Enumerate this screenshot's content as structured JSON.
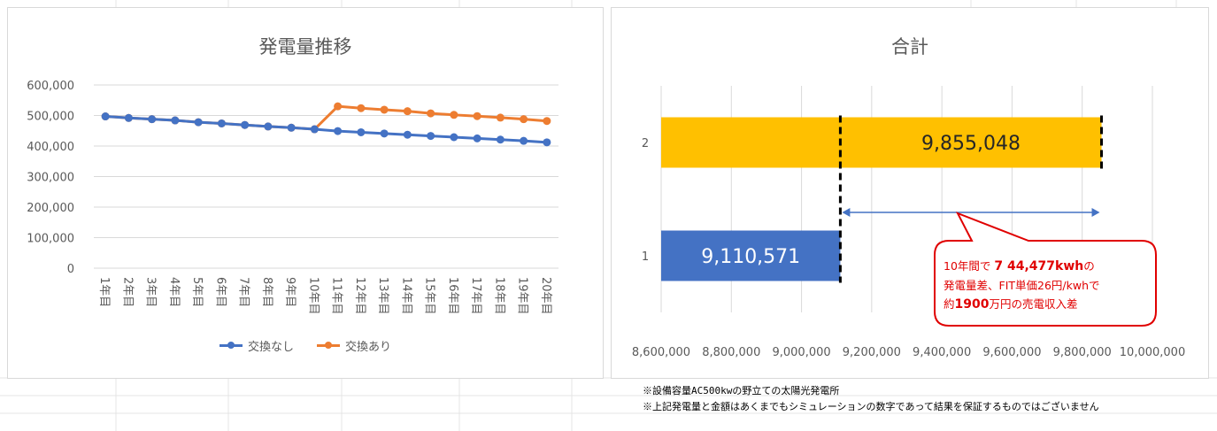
{
  "left_chart": {
    "title": "発電量推移",
    "legend": [
      {
        "label": "交換なし",
        "color": "#4472c4"
      },
      {
        "label": "交換あり",
        "color": "#ed7d31"
      }
    ]
  },
  "right_chart": {
    "title": "合計",
    "bar_labels": [
      "9,110,571",
      "9,855,048"
    ]
  },
  "callout": {
    "line1_prefix": "10年間で ",
    "line1_value": "7 44,477kwh",
    "line1_suffix": "の",
    "line2": "発電量差、FIT単価26円/kwhで",
    "line3_prefix": "約",
    "line3_value": "1900",
    "line3_suffix": "万円の売電収入差",
    "color": "#e00000"
  },
  "footnotes": [
    "※設備容量AC500kwの野立ての太陽光発電所",
    "※上記発電量と金額はあくまでもシミュレーションの数字であって結果を保証するものではございません"
  ],
  "chart_data": [
    {
      "type": "line",
      "title": "発電量推移",
      "categories": [
        "1年目",
        "2年目",
        "3年目",
        "4年目",
        "5年目",
        "6年目",
        "7年目",
        "8年目",
        "9年目",
        "10年目",
        "11年目",
        "12年目",
        "13年目",
        "14年目",
        "15年目",
        "16年目",
        "17年目",
        "18年目",
        "19年目",
        "20年目"
      ],
      "ylim": [
        0,
        600000
      ],
      "yticks": [
        0,
        100000,
        200000,
        300000,
        400000,
        500000,
        600000
      ],
      "ytick_labels": [
        "0",
        "100,000",
        "200,000",
        "300,000",
        "400,000",
        "500,000",
        "600,000"
      ],
      "grid": true,
      "legend_position": "bottom",
      "series": [
        {
          "name": "交換なし",
          "color": "#4472c4",
          "values": [
            497000,
            492000,
            488000,
            484000,
            478000,
            474000,
            469000,
            464000,
            460000,
            455000,
            449000,
            445000,
            441000,
            437000,
            433000,
            429000,
            425000,
            421000,
            417000,
            412000
          ]
        },
        {
          "name": "交換あり",
          "color": "#ed7d31",
          "values": [
            497000,
            492000,
            488000,
            484000,
            478000,
            474000,
            469000,
            464000,
            460000,
            455000,
            530000,
            524000,
            519000,
            514000,
            507000,
            502000,
            498000,
            493000,
            488000,
            482000
          ]
        }
      ]
    },
    {
      "type": "bar",
      "orientation": "horizontal",
      "title": "合計",
      "categories": [
        "1",
        "2"
      ],
      "values": [
        9110571,
        9855048
      ],
      "colors": [
        "#4472c4",
        "#ffc000"
      ],
      "xlim": [
        8600000,
        10000000
      ],
      "xticks": [
        8600000,
        8800000,
        9000000,
        9200000,
        9400000,
        9600000,
        9800000,
        10000000
      ],
      "xtick_labels": [
        "8,600,000",
        "8,800,000",
        "9,000,000",
        "9,200,000",
        "9,400,000",
        "9,600,000",
        "9,800,000",
        "10,000,000"
      ],
      "grid": true
    }
  ]
}
